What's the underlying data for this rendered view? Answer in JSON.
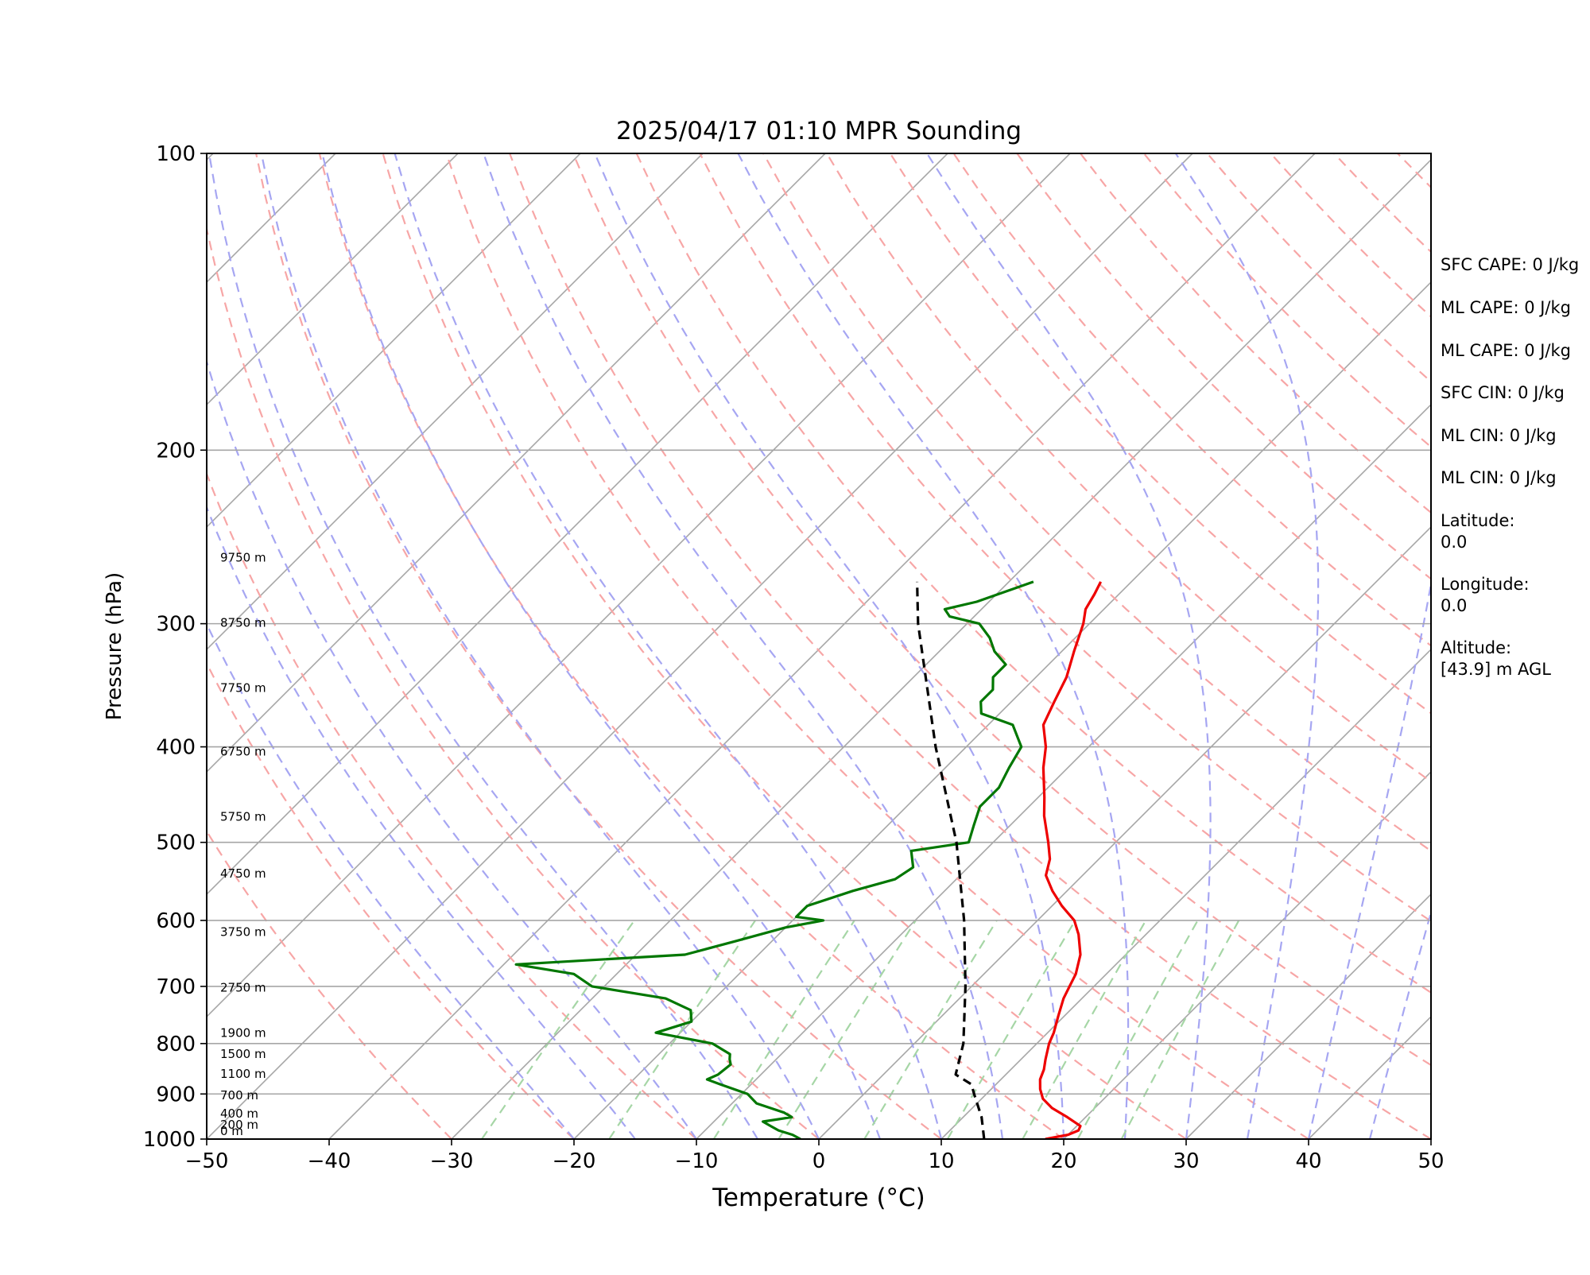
{
  "chart_data": {
    "type": "skew-t log-p sounding",
    "title": "2025/04/17 01:10 MPR Sounding",
    "xlabel": "Temperature (°C)",
    "ylabel": "Pressure (hPa)",
    "xlim": [
      -50,
      50
    ],
    "ylim": [
      1000,
      100
    ],
    "x_scale": "skewed linear",
    "y_scale": "log (inverted)",
    "grid": true,
    "x_ticks": [
      "−50",
      "−40",
      "−30",
      "−20",
      "−10",
      "0",
      "10",
      "20",
      "30",
      "40",
      "50"
    ],
    "y_ticks": [
      "1000",
      "900",
      "800",
      "700",
      "600",
      "500",
      "400",
      "300",
      "200",
      "100"
    ],
    "background_lines": {
      "isotherms_color": "#a6a6a6",
      "dry_adiabats_color": "#f7a6a6",
      "moist_adiabats_color": "#a6a6f2",
      "mixing_ratio_color": "#a6d6a6"
    },
    "series": [
      {
        "color": "#ee0000",
        "style": "solid",
        "points": [
          [
            1000,
            18.5
          ],
          [
            990,
            20
          ],
          [
            980,
            20.5
          ],
          [
            970,
            20.3
          ],
          [
            950,
            18.5
          ],
          [
            930,
            16.5
          ],
          [
            910,
            15
          ],
          [
            890,
            14
          ],
          [
            870,
            13.2
          ],
          [
            850,
            12.7
          ],
          [
            830,
            12
          ],
          [
            800,
            11
          ],
          [
            780,
            10.5
          ],
          [
            750,
            9.5
          ],
          [
            720,
            8.5
          ],
          [
            700,
            8
          ],
          [
            680,
            7.5
          ],
          [
            650,
            6.3
          ],
          [
            620,
            4.5
          ],
          [
            600,
            3
          ],
          [
            580,
            0.8
          ],
          [
            560,
            -1.2
          ],
          [
            540,
            -3
          ],
          [
            520,
            -4
          ],
          [
            500,
            -5.5
          ],
          [
            470,
            -8
          ],
          [
            450,
            -9.5
          ],
          [
            420,
            -12
          ],
          [
            400,
            -13.5
          ],
          [
            380,
            -15.5
          ],
          [
            360,
            -16.5
          ],
          [
            340,
            -17.5
          ],
          [
            320,
            -19
          ],
          [
            300,
            -20.5
          ],
          [
            290,
            -21.5
          ],
          [
            280,
            -22
          ],
          [
            272,
            -22.5
          ]
        ]
      },
      {
        "color": "#007700",
        "style": "solid",
        "points": [
          [
            1000,
            -1.5
          ],
          [
            990,
            -2.5
          ],
          [
            980,
            -4
          ],
          [
            970,
            -5
          ],
          [
            960,
            -6
          ],
          [
            950,
            -4
          ],
          [
            940,
            -5
          ],
          [
            920,
            -8
          ],
          [
            900,
            -9.5
          ],
          [
            880,
            -12.5
          ],
          [
            870,
            -14
          ],
          [
            860,
            -13.5
          ],
          [
            840,
            -13.3
          ],
          [
            830,
            -13.8
          ],
          [
            820,
            -14.2
          ],
          [
            800,
            -16.5
          ],
          [
            780,
            -22
          ],
          [
            760,
            -20
          ],
          [
            740,
            -21
          ],
          [
            720,
            -24
          ],
          [
            700,
            -31
          ],
          [
            680,
            -33.5
          ],
          [
            665,
            -39
          ],
          [
            650,
            -26
          ],
          [
            630,
            -23
          ],
          [
            610,
            -20
          ],
          [
            600,
            -17.5
          ],
          [
            595,
            -20
          ],
          [
            580,
            -20
          ],
          [
            560,
            -17.5
          ],
          [
            545,
            -15
          ],
          [
            530,
            -14.5
          ],
          [
            510,
            -16
          ],
          [
            500,
            -12
          ],
          [
            480,
            -13
          ],
          [
            460,
            -14
          ],
          [
            440,
            -14
          ],
          [
            420,
            -14.8
          ],
          [
            400,
            -15.5
          ],
          [
            380,
            -18
          ],
          [
            370,
            -21.5
          ],
          [
            360,
            -22.5
          ],
          [
            350,
            -22.5
          ],
          [
            340,
            -23.5
          ],
          [
            330,
            -23.5
          ],
          [
            320,
            -25.5
          ],
          [
            310,
            -27
          ],
          [
            300,
            -29
          ],
          [
            295,
            -32
          ],
          [
            290,
            -33
          ],
          [
            285,
            -31
          ],
          [
            272,
            -28
          ]
        ]
      },
      {
        "color": "#000000",
        "style": "dashed",
        "points": [
          [
            1000,
            13.5
          ],
          [
            950,
            11.5
          ],
          [
            900,
            9
          ],
          [
            880,
            8
          ],
          [
            860,
            5.9
          ],
          [
            800,
            4
          ],
          [
            700,
            -0.5
          ],
          [
            600,
            -6
          ],
          [
            500,
            -13
          ],
          [
            400,
            -22.5
          ],
          [
            300,
            -34
          ],
          [
            272,
            -37.5
          ]
        ]
      }
    ],
    "height_labels": [
      {
        "p": 1000,
        "text": "0 m"
      },
      {
        "p": 985,
        "text": "200 m"
      },
      {
        "p": 960,
        "text": "400 m"
      },
      {
        "p": 920,
        "text": "700 m"
      },
      {
        "p": 875,
        "text": "1100 m"
      },
      {
        "p": 835,
        "text": "1500 m"
      },
      {
        "p": 795,
        "text": "1900 m"
      },
      {
        "p": 715,
        "text": "2750 m"
      },
      {
        "p": 628,
        "text": "3750 m"
      },
      {
        "p": 548,
        "text": "4750 m"
      },
      {
        "p": 480,
        "text": "5750 m"
      },
      {
        "p": 412,
        "text": "6750 m"
      },
      {
        "p": 355,
        "text": "7750 m"
      },
      {
        "p": 305,
        "text": "8750 m"
      },
      {
        "p": 262,
        "text": "9750 m"
      }
    ]
  },
  "info_panel": {
    "sfc_cape": "SFC CAPE: 0 J/kg",
    "ml_cape_1": "ML CAPE: 0 J/kg",
    "ml_cape_2": "ML CAPE: 0 J/kg",
    "sfc_cin": "SFC CIN: 0 J/kg",
    "ml_cin_1": "ML CIN: 0 J/kg",
    "ml_cin_2": "ML CIN: 0 J/kg",
    "latitude_label": "Latitude:",
    "latitude_value": "0.0",
    "longitude_label": "Longitude:",
    "longitude_value": "0.0",
    "altitude_label": "Altitude:",
    "altitude_value": "[43.9] m AGL"
  }
}
